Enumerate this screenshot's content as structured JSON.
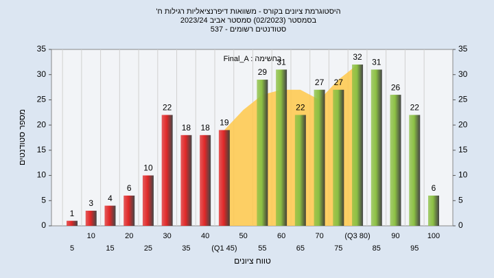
{
  "chart_data": {
    "type": "bar",
    "title": "היסטוגרמת ציונים בקורס - משוואות דיפרנציאליות רגילות ח'",
    "subtitle": "בסמסטר (02/2023) סמסטר אביב 2023/24",
    "subtitle2": "סטודנטים רשומים - 537",
    "annotation": "Final_A : בחשימה",
    "x_label": "טווח ציונים",
    "y_label": "מספר סטודנטים",
    "categories": [
      "5",
      "10",
      "15",
      "20",
      "25",
      "30",
      "35",
      "40",
      "(Q1 45)",
      "50",
      "55",
      "60",
      "65",
      "70",
      "75",
      "(Q3 80)",
      "85",
      "90",
      "95",
      "100"
    ],
    "values": [
      1,
      3,
      4,
      6,
      10,
      22,
      18,
      18,
      19,
      null,
      29,
      31,
      22,
      27,
      27,
      32,
      31,
      26,
      22,
      6
    ],
    "colors": [
      "#e02828",
      "#e02828",
      "#e02828",
      "#e02828",
      "#e02828",
      "#e02828",
      "#e02828",
      "#e02828",
      "#e02828",
      "#e02828",
      "#8cc044",
      "#8cc044",
      "#8cc044",
      "#8cc044",
      "#8cc044",
      "#8cc044",
      "#8cc044",
      "#8cc044",
      "#8cc044",
      "#8cc044"
    ],
    "area": {
      "color": "#ffc84a",
      "values": [
        null,
        null,
        null,
        null,
        null,
        null,
        null,
        null,
        19,
        23,
        26,
        27,
        27,
        25,
        29,
        32,
        null,
        null,
        null,
        null
      ]
    },
    "ylim": [
      0,
      35
    ],
    "yticks": [
      0,
      5,
      10,
      15,
      20,
      25,
      30,
      35
    ],
    "y2lim": [
      0,
      35
    ],
    "y2ticks": [
      0,
      5,
      10,
      15,
      20,
      25,
      30,
      35
    ],
    "grid": true
  }
}
